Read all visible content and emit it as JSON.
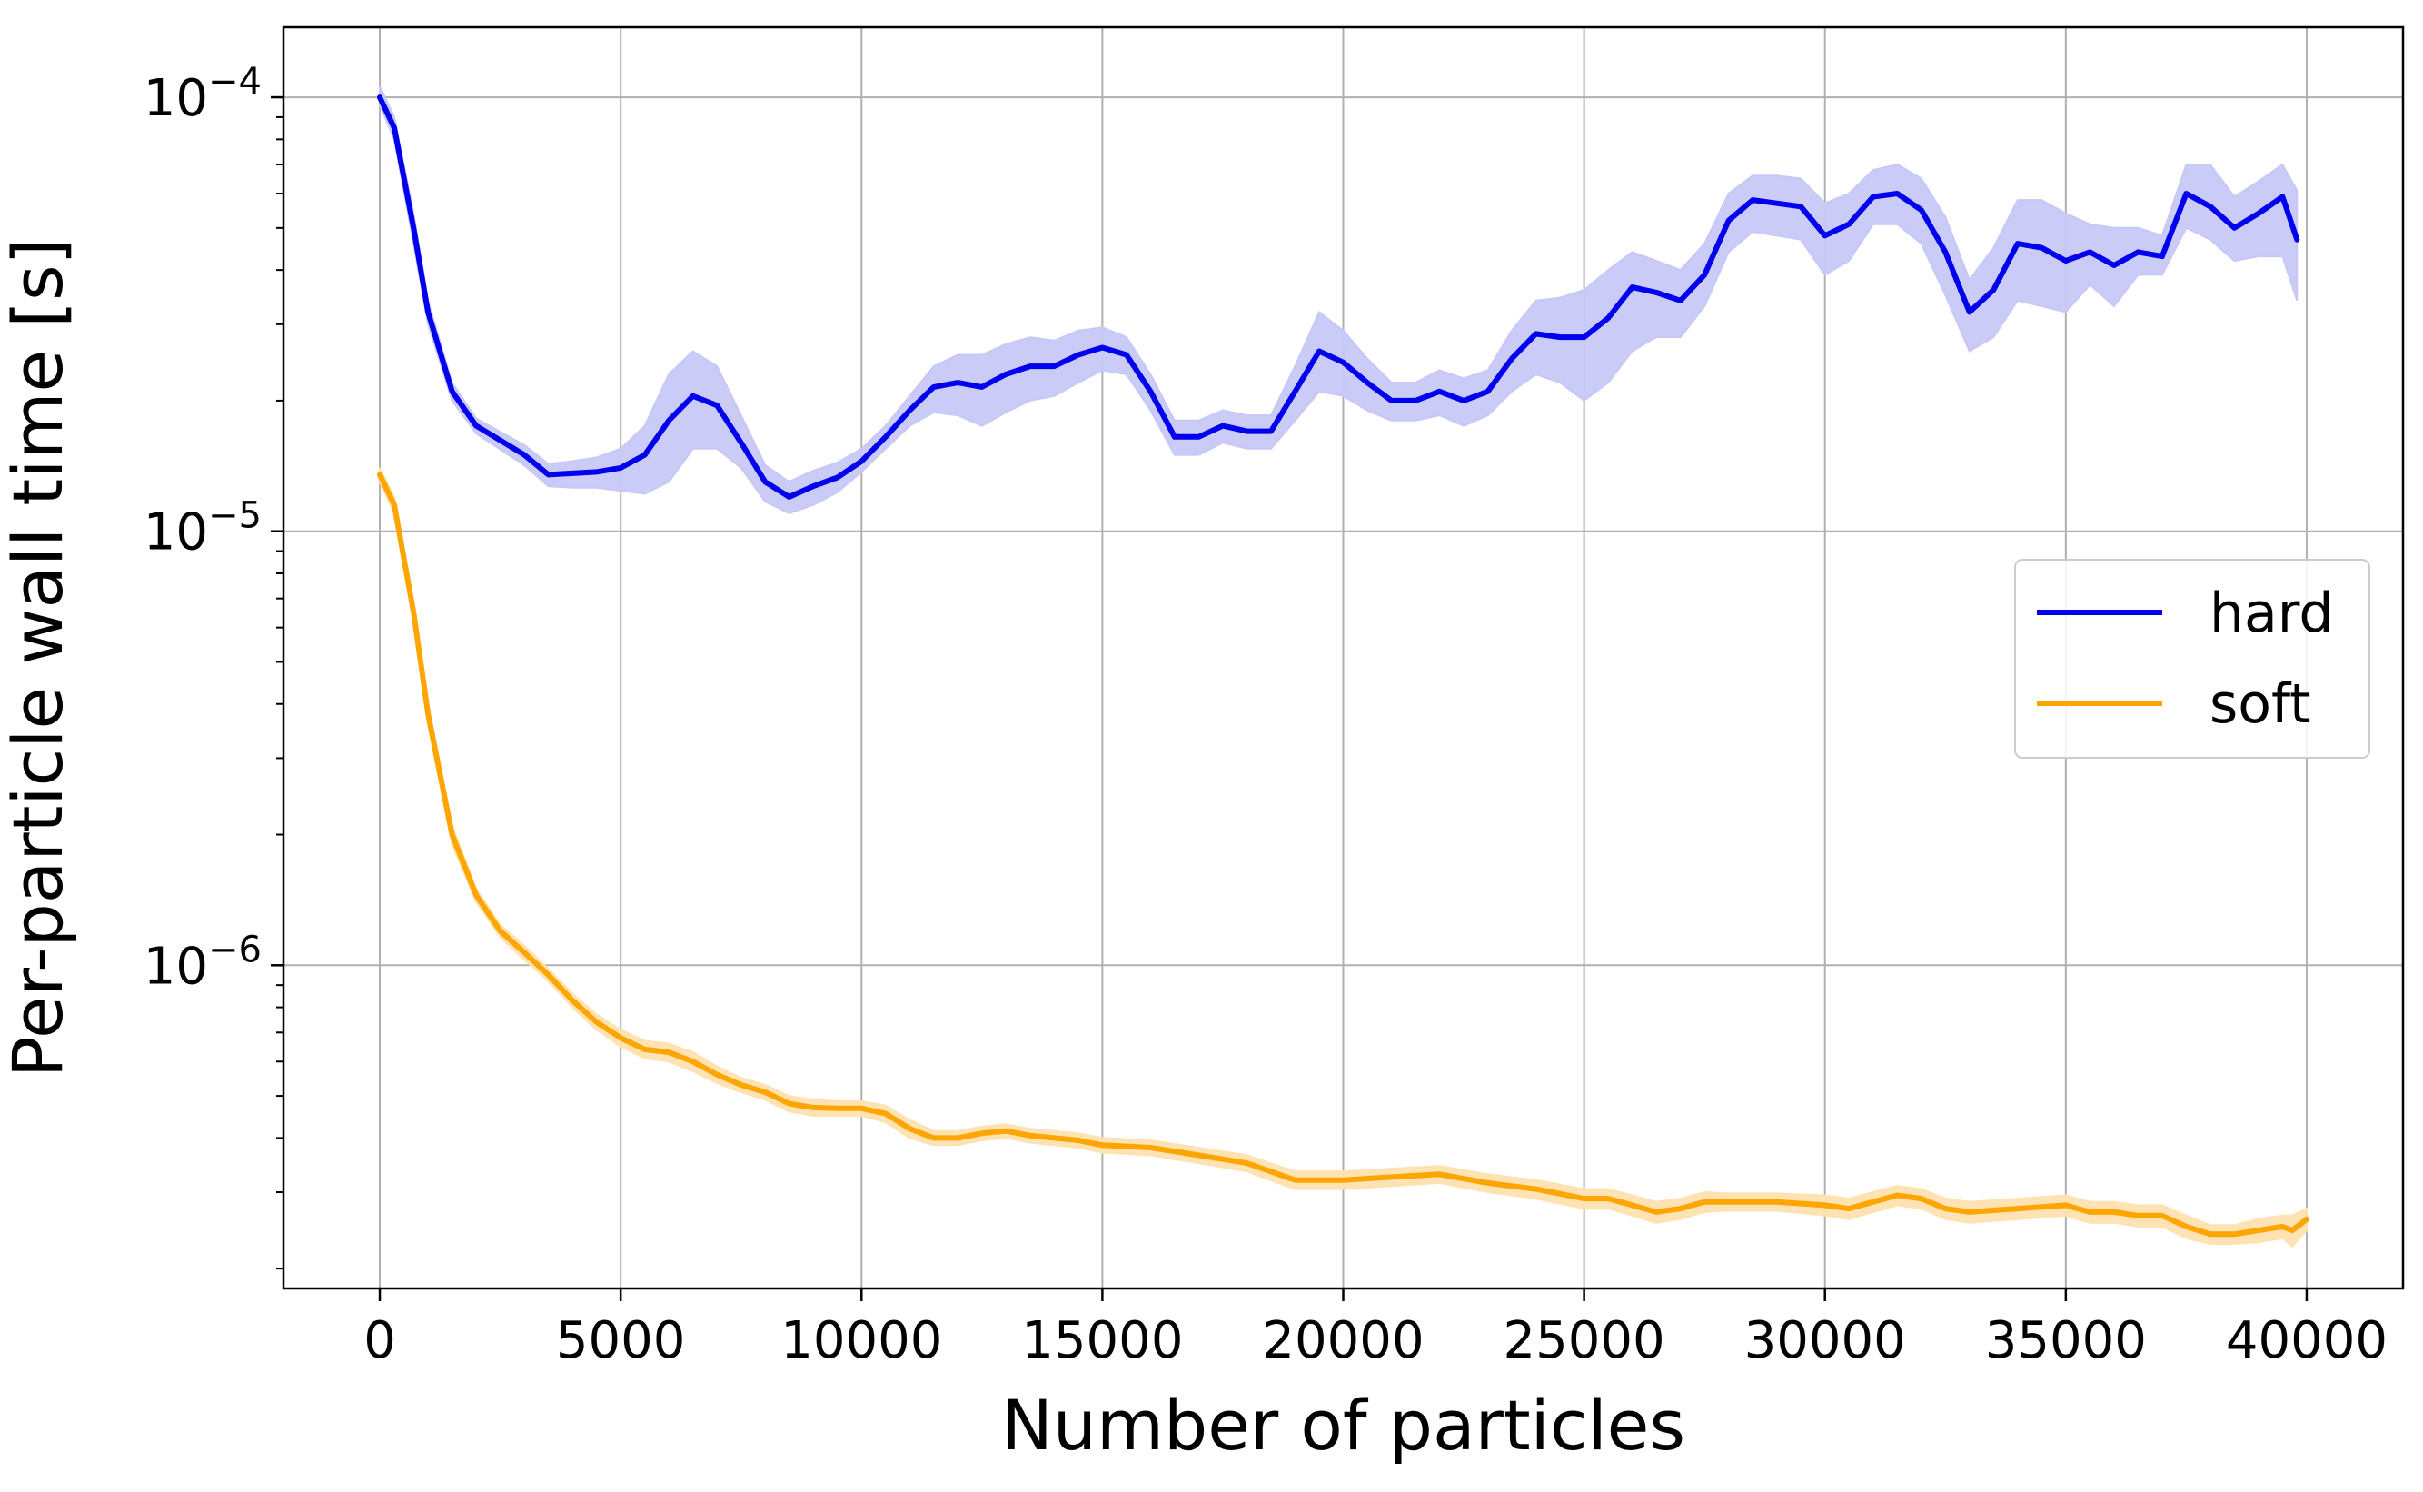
{
  "chart_data": {
    "type": "line",
    "title": "",
    "xlabel": "Number of particles",
    "ylabel": "Per-particle wall time [s]",
    "xlim": [
      -2000,
      42000
    ],
    "ylim": [
      1.8e-07,
      0.000145
    ],
    "yscale": "log",
    "grid": true,
    "legend_position": "center-right",
    "x_ticks": [
      0,
      5000,
      10000,
      15000,
      20000,
      25000,
      30000,
      35000,
      40000
    ],
    "x_tick_labels": [
      "0",
      "5000",
      "10000",
      "15000",
      "20000",
      "25000",
      "30000",
      "35000",
      "40000"
    ],
    "y_ticks": [
      1e-06,
      1e-05,
      0.0001
    ],
    "y_tick_labels": [
      {
        "base": "10",
        "exp": "−6"
      },
      {
        "base": "10",
        "exp": "−5"
      },
      {
        "base": "10",
        "exp": "−4"
      }
    ],
    "series": [
      {
        "name": "hard",
        "color": "#0000ee",
        "band_color": "#c8c8f8",
        "x": [
          0,
          300,
          700,
          1000,
          1500,
          2000,
          3000,
          3500,
          4000,
          4500,
          5000,
          5500,
          6000,
          6500,
          7000,
          7500,
          8000,
          8500,
          9000,
          9500,
          10000,
          10500,
          11000,
          11500,
          12000,
          12500,
          13000,
          13500,
          14000,
          14500,
          15000,
          15500,
          16000,
          16500,
          17000,
          17500,
          18000,
          18500,
          19000,
          19500,
          20000,
          20500,
          21000,
          21500,
          22000,
          22500,
          23000,
          23500,
          24000,
          24500,
          25000,
          25500,
          26000,
          26500,
          27000,
          27500,
          28000,
          28500,
          29000,
          29500,
          30000,
          30500,
          31000,
          31500,
          32000,
          32500,
          33000,
          33500,
          34000,
          34500,
          35000,
          35500,
          36000,
          36500,
          37000,
          37500,
          38000,
          38500,
          39000,
          39500,
          39800
        ],
        "values": [
          0.0001,
          8.5e-05,
          5e-05,
          3.2e-05,
          2.1e-05,
          1.75e-05,
          1.5e-05,
          1.35e-05,
          1.36e-05,
          1.37e-05,
          1.4e-05,
          1.5e-05,
          1.8e-05,
          2.05e-05,
          1.95e-05,
          1.6e-05,
          1.3e-05,
          1.2e-05,
          1.27e-05,
          1.33e-05,
          1.45e-05,
          1.65e-05,
          1.9e-05,
          2.15e-05,
          2.2e-05,
          2.15e-05,
          2.3e-05,
          2.4e-05,
          2.4e-05,
          2.55e-05,
          2.65e-05,
          2.55e-05,
          2.1e-05,
          1.65e-05,
          1.65e-05,
          1.75e-05,
          1.7e-05,
          1.7e-05,
          2.1e-05,
          2.6e-05,
          2.45e-05,
          2.2e-05,
          2e-05,
          2e-05,
          2.1e-05,
          2e-05,
          2.1e-05,
          2.5e-05,
          2.85e-05,
          2.8e-05,
          2.8e-05,
          3.1e-05,
          3.65e-05,
          3.55e-05,
          3.4e-05,
          3.9e-05,
          5.2e-05,
          5.8e-05,
          5.7e-05,
          5.6e-05,
          4.8e-05,
          5.1e-05,
          5.9e-05,
          6e-05,
          5.5e-05,
          4.4e-05,
          3.2e-05,
          3.6e-05,
          4.6e-05,
          4.5e-05,
          4.2e-05,
          4.4e-05,
          4.1e-05,
          4.4e-05,
          4.3e-05,
          6e-05,
          5.6e-05,
          5e-05,
          5.4e-05,
          5.9e-05,
          4.7e-05
        ],
        "lower": [
          9.6e-05,
          8e-05,
          4.6e-05,
          3e-05,
          2e-05,
          1.68e-05,
          1.42e-05,
          1.27e-05,
          1.26e-05,
          1.26e-05,
          1.24e-05,
          1.22e-05,
          1.3e-05,
          1.55e-05,
          1.55e-05,
          1.4e-05,
          1.17e-05,
          1.1e-05,
          1.15e-05,
          1.23e-05,
          1.37e-05,
          1.55e-05,
          1.75e-05,
          1.88e-05,
          1.85e-05,
          1.75e-05,
          1.88e-05,
          2e-05,
          2.05e-05,
          2.2e-05,
          2.35e-05,
          2.3e-05,
          1.9e-05,
          1.5e-05,
          1.5e-05,
          1.6e-05,
          1.55e-05,
          1.55e-05,
          1.8e-05,
          2.1e-05,
          2.05e-05,
          1.9e-05,
          1.8e-05,
          1.8e-05,
          1.85e-05,
          1.75e-05,
          1.85e-05,
          2.1e-05,
          2.3e-05,
          2.2e-05,
          2e-05,
          2.2e-05,
          2.6e-05,
          2.8e-05,
          2.8e-05,
          3.3e-05,
          4.4e-05,
          4.9e-05,
          4.8e-05,
          4.7e-05,
          3.9e-05,
          4.2e-05,
          5.1e-05,
          5.1e-05,
          4.6e-05,
          3.5e-05,
          2.6e-05,
          2.8e-05,
          3.4e-05,
          3.3e-05,
          3.2e-05,
          3.7e-05,
          3.3e-05,
          3.9e-05,
          3.9e-05,
          5e-05,
          4.7e-05,
          4.2e-05,
          4.3e-05,
          4.3e-05,
          3.4e-05
        ],
        "upper": [
          0.000106,
          9e-05,
          5.4e-05,
          3.4e-05,
          2.2e-05,
          1.82e-05,
          1.58e-05,
          1.43e-05,
          1.45e-05,
          1.48e-05,
          1.55e-05,
          1.75e-05,
          2.3e-05,
          2.6e-05,
          2.4e-05,
          1.85e-05,
          1.42e-05,
          1.3e-05,
          1.38e-05,
          1.44e-05,
          1.55e-05,
          1.75e-05,
          2.05e-05,
          2.4e-05,
          2.55e-05,
          2.55e-05,
          2.7e-05,
          2.8e-05,
          2.75e-05,
          2.9e-05,
          2.95e-05,
          2.8e-05,
          2.3e-05,
          1.8e-05,
          1.8e-05,
          1.9e-05,
          1.85e-05,
          1.85e-05,
          2.4e-05,
          3.2e-05,
          2.9e-05,
          2.5e-05,
          2.2e-05,
          2.2e-05,
          2.35e-05,
          2.25e-05,
          2.35e-05,
          2.9e-05,
          3.4e-05,
          3.45e-05,
          3.6e-05,
          4e-05,
          4.4e-05,
          4.2e-05,
          4e-05,
          4.6e-05,
          6e-05,
          6.6e-05,
          6.6e-05,
          6.5e-05,
          5.7e-05,
          6e-05,
          6.8e-05,
          7e-05,
          6.5e-05,
          5.3e-05,
          3.8e-05,
          4.5e-05,
          5.8e-05,
          5.8e-05,
          5.4e-05,
          5.1e-05,
          5e-05,
          5e-05,
          4.8e-05,
          7e-05,
          7e-05,
          5.9e-05,
          6.4e-05,
          7e-05,
          6.1e-05
        ]
      },
      {
        "name": "soft",
        "color": "#ffa500",
        "band_color": "#ffe2b0",
        "x": [
          0,
          300,
          700,
          1000,
          1500,
          2000,
          2500,
          3000,
          3500,
          4000,
          4500,
          5000,
          5500,
          6000,
          6500,
          7000,
          7500,
          8000,
          8500,
          9000,
          9500,
          10000,
          10500,
          11000,
          11500,
          12000,
          12500,
          13000,
          13500,
          14000,
          14500,
          15000,
          16000,
          17000,
          18000,
          19000,
          20000,
          21000,
          22000,
          23000,
          24000,
          25000,
          25500,
          26000,
          26500,
          27000,
          27500,
          28000,
          29000,
          30000,
          30500,
          31000,
          31500,
          32000,
          32500,
          33000,
          34000,
          35000,
          35500,
          36000,
          36500,
          37000,
          37500,
          38000,
          38500,
          39000,
          39500,
          39700,
          40000
        ],
        "values": [
          1.35e-05,
          1.15e-05,
          6.5e-06,
          3.8e-06,
          2e-06,
          1.45e-06,
          1.2e-06,
          1.07e-06,
          9.5e-07,
          8.3e-07,
          7.4e-07,
          6.8e-07,
          6.4e-07,
          6.3e-07,
          6e-07,
          5.6e-07,
          5.3e-07,
          5.1e-07,
          4.8e-07,
          4.7e-07,
          4.68e-07,
          4.68e-07,
          4.55e-07,
          4.2e-07,
          4e-07,
          4e-07,
          4.1e-07,
          4.15e-07,
          4.05e-07,
          4e-07,
          3.95e-07,
          3.85e-07,
          3.8e-07,
          3.65e-07,
          3.5e-07,
          3.2e-07,
          3.2e-07,
          3.25e-07,
          3.3e-07,
          3.15e-07,
          3.05e-07,
          2.9e-07,
          2.9e-07,
          2.8e-07,
          2.7e-07,
          2.75e-07,
          2.85e-07,
          2.85e-07,
          2.85e-07,
          2.8e-07,
          2.75e-07,
          2.85e-07,
          2.95e-07,
          2.9e-07,
          2.75e-07,
          2.7e-07,
          2.75e-07,
          2.8e-07,
          2.7e-07,
          2.7e-07,
          2.65e-07,
          2.65e-07,
          2.5e-07,
          2.4e-07,
          2.4e-07,
          2.45e-07,
          2.5e-07,
          2.45e-07,
          2.6e-07
        ],
        "lower": [
          1.3e-05,
          1.1e-05,
          6.2e-06,
          3.6e-06,
          1.9e-06,
          1.4e-06,
          1.16e-06,
          1.03e-06,
          9.2e-07,
          8e-07,
          7.1e-07,
          6.5e-07,
          6.1e-07,
          6e-07,
          5.7e-07,
          5.35e-07,
          5.1e-07,
          4.9e-07,
          4.6e-07,
          4.5e-07,
          4.5e-07,
          4.5e-07,
          4.35e-07,
          4e-07,
          3.85e-07,
          3.85e-07,
          3.95e-07,
          4e-07,
          3.9e-07,
          3.85e-07,
          3.8e-07,
          3.7e-07,
          3.65e-07,
          3.5e-07,
          3.35e-07,
          3.05e-07,
          3.05e-07,
          3.1e-07,
          3.15e-07,
          3e-07,
          2.9e-07,
          2.75e-07,
          2.75e-07,
          2.65e-07,
          2.55e-07,
          2.6e-07,
          2.7e-07,
          2.72e-07,
          2.72e-07,
          2.65e-07,
          2.6e-07,
          2.7e-07,
          2.8e-07,
          2.75e-07,
          2.6e-07,
          2.55e-07,
          2.6e-07,
          2.65e-07,
          2.55e-07,
          2.55e-07,
          2.5e-07,
          2.5e-07,
          2.35e-07,
          2.28e-07,
          2.28e-07,
          2.3e-07,
          2.35e-07,
          2.25e-07,
          2.45e-07
        ],
        "upper": [
          1.4e-05,
          1.2e-05,
          6.8e-06,
          4e-06,
          2.1e-06,
          1.5e-06,
          1.24e-06,
          1.11e-06,
          9.8e-07,
          8.6e-07,
          7.7e-07,
          7.1e-07,
          6.7e-07,
          6.6e-07,
          6.3e-07,
          5.85e-07,
          5.5e-07,
          5.3e-07,
          5e-07,
          4.9e-07,
          4.86e-07,
          4.86e-07,
          4.75e-07,
          4.4e-07,
          4.15e-07,
          4.15e-07,
          4.25e-07,
          4.3e-07,
          4.2e-07,
          4.15e-07,
          4.1e-07,
          4e-07,
          3.95e-07,
          3.8e-07,
          3.65e-07,
          3.35e-07,
          3.35e-07,
          3.4e-07,
          3.45e-07,
          3.3e-07,
          3.2e-07,
          3.05e-07,
          3.05e-07,
          2.95e-07,
          2.85e-07,
          2.9e-07,
          3e-07,
          2.98e-07,
          2.98e-07,
          2.95e-07,
          2.9e-07,
          3e-07,
          3.1e-07,
          3.05e-07,
          2.9e-07,
          2.85e-07,
          2.9e-07,
          2.95e-07,
          2.85e-07,
          2.85e-07,
          2.8e-07,
          2.8e-07,
          2.65e-07,
          2.52e-07,
          2.52e-07,
          2.6e-07,
          2.65e-07,
          2.65e-07,
          2.75e-07
        ]
      }
    ]
  }
}
